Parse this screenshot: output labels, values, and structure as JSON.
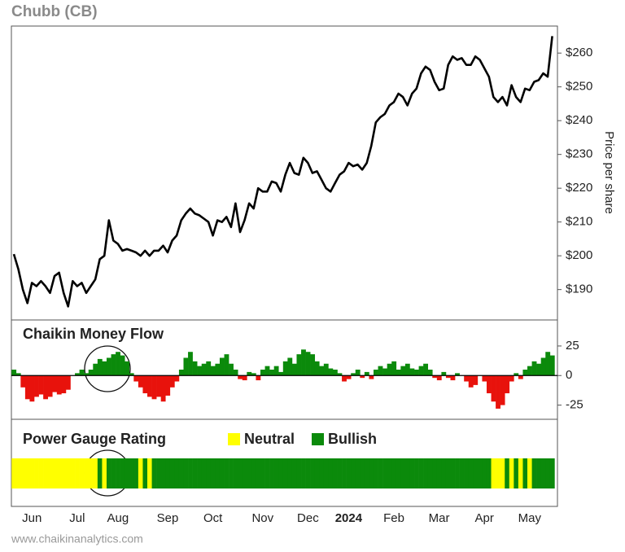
{
  "title": "Chubb (CB)",
  "footer": "www.chaikinanalytics.com",
  "chart_data": [
    {
      "type": "line",
      "axis_label": "Price per share",
      "color": "#000000",
      "categories": [
        null,
        null,
        null,
        null,
        "Jun",
        null,
        null,
        null,
        null,
        null,
        null,
        null,
        null,
        null,
        "Jul",
        null,
        null,
        null,
        null,
        null,
        null,
        null,
        null,
        "Aug",
        null,
        null,
        null,
        null,
        null,
        null,
        null,
        null,
        null,
        null,
        "Sep",
        null,
        null,
        null,
        null,
        null,
        null,
        null,
        null,
        null,
        "Oct",
        null,
        null,
        null,
        null,
        null,
        null,
        null,
        null,
        null,
        null,
        "Nov",
        null,
        null,
        null,
        null,
        null,
        null,
        null,
        null,
        null,
        "Dec",
        null,
        null,
        null,
        null,
        null,
        null,
        null,
        null,
        "2024",
        null,
        null,
        null,
        null,
        null,
        null,
        null,
        null,
        null,
        "Feb",
        null,
        null,
        null,
        null,
        null,
        null,
        null,
        null,
        null,
        "Mar",
        null,
        null,
        null,
        null,
        null,
        null,
        null,
        null,
        null,
        "Apr",
        null,
        null,
        null,
        null,
        null,
        null,
        null,
        null,
        null,
        "May",
        null,
        null,
        null,
        null,
        null
      ],
      "values": [
        200.5,
        196,
        190,
        186,
        192,
        191,
        192.5,
        191,
        189,
        194,
        195,
        189,
        185,
        192.5,
        191,
        192,
        189,
        191,
        193,
        199,
        200,
        210.5,
        204.5,
        203.5,
        201.5,
        202,
        201.5,
        201,
        200,
        201.5,
        200,
        201.5,
        201.5,
        203,
        201,
        204.5,
        206,
        210.5,
        212.5,
        214,
        212.5,
        212,
        211,
        210,
        206,
        210.5,
        210,
        211.5,
        208.5,
        215.5,
        207,
        210.5,
        215.5,
        214,
        220,
        219,
        219,
        222,
        221.5,
        219,
        224,
        227.5,
        224.5,
        224,
        229,
        227.5,
        224.5,
        225,
        222.5,
        220,
        219,
        221.5,
        224,
        225,
        227.5,
        226.5,
        227,
        225.5,
        227.5,
        232.5,
        239.5,
        241,
        242,
        244.5,
        245.5,
        248,
        247,
        244.5,
        248,
        249.5,
        254,
        256,
        255,
        251.5,
        249,
        249.5,
        256.5,
        259,
        258,
        258.5,
        256.5,
        256.5,
        259,
        258,
        255.5,
        253,
        247,
        245.5,
        247,
        244.5,
        250.5,
        247,
        245.5,
        249.5,
        249,
        251.5,
        252,
        254,
        253,
        265
      ],
      "ylim": [
        181,
        268
      ],
      "yticks": [
        {
          "value": 190,
          "label": "$190"
        },
        {
          "value": 200,
          "label": "$200"
        },
        {
          "value": 210,
          "label": "$210"
        },
        {
          "value": 220,
          "label": "$220"
        },
        {
          "value": 230,
          "label": "$230"
        },
        {
          "value": 240,
          "label": "$240"
        },
        {
          "value": 250,
          "label": "$250"
        },
        {
          "value": 260,
          "label": "$260"
        }
      ]
    },
    {
      "type": "area",
      "title": "Chaikin Money Flow",
      "positive_color": "#0b8a0b",
      "negative_color": "#e8120c",
      "values": [
        5,
        2,
        -10,
        -20,
        -22,
        -18,
        -16,
        -20,
        -18,
        -14,
        -16,
        -15,
        -12,
        0,
        2,
        5,
        2,
        5,
        10,
        14,
        12,
        15,
        18,
        20,
        17,
        12,
        2,
        -5,
        -10,
        -15,
        -18,
        -20,
        -18,
        -22,
        -17,
        -10,
        -5,
        5,
        15,
        20,
        12,
        8,
        10,
        12,
        8,
        10,
        15,
        18,
        10,
        5,
        -3,
        -4,
        3,
        2,
        -4,
        5,
        8,
        5,
        8,
        3,
        12,
        15,
        10,
        18,
        22,
        20,
        18,
        12,
        8,
        10,
        6,
        5,
        2,
        -5,
        -3,
        2,
        5,
        -2,
        3,
        -3,
        5,
        8,
        6,
        10,
        12,
        5,
        8,
        10,
        6,
        5,
        8,
        10,
        5,
        -2,
        -4,
        3,
        -2,
        -4,
        2,
        0,
        -5,
        -10,
        -8,
        0,
        -5,
        -15,
        -22,
        -28,
        -25,
        -15,
        -5,
        2,
        -3,
        5,
        8,
        12,
        10,
        15,
        20,
        17
      ],
      "ylim": [
        -37,
        47
      ],
      "yticks": [
        -25,
        0,
        25
      ]
    },
    {
      "type": "timeline",
      "title": "Power Gauge Rating",
      "series": [
        {
          "name": "Neutral",
          "color": "#ffff00"
        },
        {
          "name": "Bullish",
          "color": "#0b8a0b"
        }
      ],
      "ratings": [
        0,
        0,
        0,
        0,
        0,
        0,
        0,
        0,
        0,
        0,
        0,
        0,
        0,
        0,
        0,
        0,
        0,
        0,
        0,
        1,
        0,
        1,
        1,
        1,
        1,
        1,
        1,
        1,
        0,
        1,
        0,
        1,
        1,
        1,
        1,
        1,
        1,
        1,
        1,
        1,
        1,
        1,
        1,
        1,
        1,
        1,
        1,
        1,
        1,
        1,
        1,
        1,
        1,
        1,
        1,
        1,
        1,
        1,
        1,
        1,
        1,
        1,
        1,
        1,
        1,
        1,
        1,
        1,
        1,
        1,
        1,
        1,
        1,
        1,
        1,
        1,
        1,
        1,
        1,
        1,
        1,
        1,
        1,
        1,
        1,
        1,
        1,
        1,
        1,
        1,
        1,
        1,
        1,
        1,
        1,
        1,
        1,
        1,
        1,
        1,
        1,
        1,
        1,
        1,
        1,
        1,
        0,
        0,
        0,
        1,
        0,
        1,
        0,
        1,
        0,
        1,
        1,
        1,
        1,
        1
      ]
    }
  ]
}
